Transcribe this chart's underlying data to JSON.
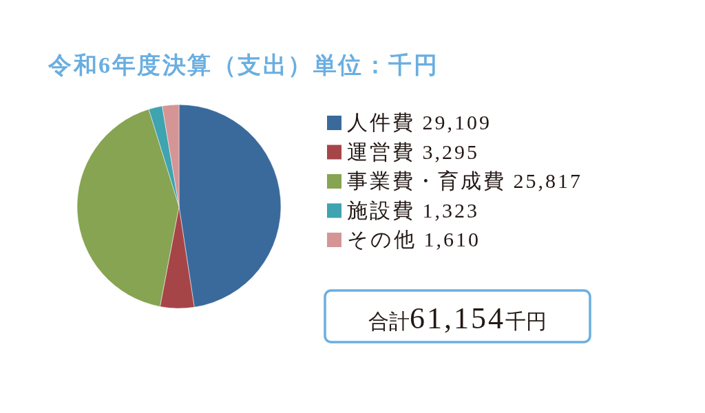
{
  "chart_data": {
    "type": "pie",
    "title": "令和6年度決算（支出）単位：千円",
    "categories": [
      "人件費",
      "運営費",
      "事業費・育成費",
      "施設費",
      "その他"
    ],
    "values": [
      29109,
      3295,
      25817,
      1323,
      1610
    ],
    "colors": [
      "#3a6a9c",
      "#a64548",
      "#86a452",
      "#3fa3b0",
      "#d49594"
    ],
    "value_labels": [
      "29,109",
      "3,295",
      "25,817",
      "1,323",
      "1,610"
    ],
    "legend": "right",
    "annotations": [
      "合計61,154千円"
    ]
  }
}
